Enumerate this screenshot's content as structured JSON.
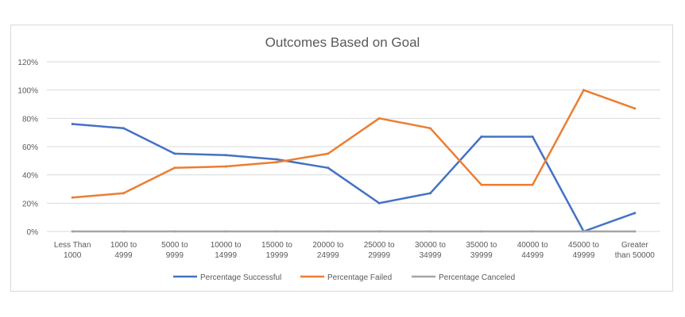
{
  "chart_data": {
    "type": "line",
    "title": "Outcomes Based on Goal",
    "xlabel": "",
    "ylabel": "",
    "categories": [
      [
        "Less Than",
        "1000"
      ],
      [
        "1000 to",
        "4999"
      ],
      [
        "5000 to",
        "9999"
      ],
      [
        "10000 to",
        "14999"
      ],
      [
        "15000 to",
        "19999"
      ],
      [
        "20000 to",
        "24999"
      ],
      [
        "25000 to",
        "29999"
      ],
      [
        "30000 to",
        "34999"
      ],
      [
        "35000 to",
        "39999"
      ],
      [
        "40000 to",
        "44999"
      ],
      [
        "45000 to",
        "49999"
      ],
      [
        "Greater",
        "than 50000"
      ]
    ],
    "ylim": [
      0,
      120
    ],
    "yticks": [
      0,
      20,
      40,
      60,
      80,
      100,
      120
    ],
    "ytick_labels": [
      "0%",
      "20%",
      "40%",
      "60%",
      "80%",
      "100%",
      "120%"
    ],
    "grid": true,
    "legend_position": "bottom",
    "series": [
      {
        "name": "Percentage Successful",
        "color": "#4472C4",
        "values": [
          76,
          73,
          55,
          54,
          51,
          45,
          20,
          27,
          67,
          67,
          0,
          13
        ]
      },
      {
        "name": "Percentage Failed",
        "color": "#ED7D31",
        "values": [
          24,
          27,
          45,
          46,
          49,
          55,
          80,
          73,
          33,
          33,
          100,
          87
        ]
      },
      {
        "name": "Percentage Canceled",
        "color": "#A5A5A5",
        "values": [
          0,
          0,
          0,
          0,
          0,
          0,
          0,
          0,
          0,
          0,
          0,
          0
        ]
      }
    ]
  }
}
